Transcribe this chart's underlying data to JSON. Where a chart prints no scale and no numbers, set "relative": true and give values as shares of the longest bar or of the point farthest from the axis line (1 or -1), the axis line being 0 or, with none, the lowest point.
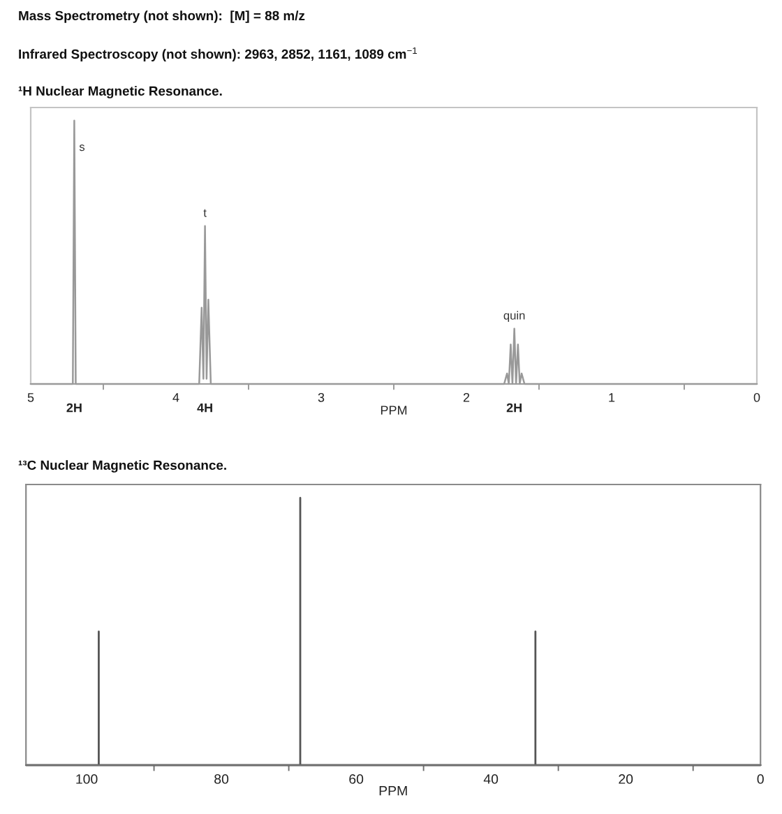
{
  "chart_data": [
    {
      "type": "other",
      "annotations": [
        "Mass Spectrometry (not shown):  [M] = 88 m/z",
        "Infrared Spectroscopy (not shown): 2963, 2852, 1161, 1089 cm$^{−1}$"
      ]
    },
    {
      "type": "line",
      "title": "¹H Nuclear Magnetic Resonance.",
      "xlabel": "PPM",
      "relative": true,
      "xlim": [
        5,
        0
      ],
      "xticks": [
        5,
        {
          "value": 4.5,
          "label": null
        },
        4,
        {
          "value": 3.5,
          "label": null
        },
        3,
        {
          "value": 2.5,
          "label": null
        },
        2,
        {
          "value": 1.5,
          "label": null
        },
        1,
        {
          "value": 0.5,
          "label": null
        },
        0
      ],
      "series": [
        {
          "color": "#999999",
          "x": [
            5,
            4.71,
            4.7,
            4.69,
            3.84,
            3.823,
            3.811,
            3.8,
            3.789,
            3.777,
            3.76,
            1.74,
            1.72,
            1.708,
            1.695,
            1.683,
            1.67,
            1.658,
            1.645,
            1.633,
            1.62,
            1.6,
            0
          ],
          "values": [
            0,
            0,
            1,
            0,
            0,
            0.29,
            0.02,
            0.6,
            0.02,
            0.32,
            0,
            0,
            0.04,
            0,
            0.15,
            0,
            0.21,
            0,
            0.15,
            0,
            0.04,
            0,
            0
          ]
        }
      ],
      "annotations": [
        {
          "text": "s",
          "x": 4.7,
          "y": 1
        },
        {
          "text": "t",
          "x": 3.8,
          "y": 0.6
        },
        {
          "text": "quin",
          "x": 1.67,
          "y": 0.21
        },
        "2H",
        "4H",
        "2H"
      ]
    },
    {
      "type": "line",
      "title": "¹³C Nuclear Magnetic Resonance.",
      "xlabel": "PPM",
      "relative": true,
      "xlim": [
        109,
        0
      ],
      "xticks": [
        100,
        {
          "value": 90,
          "label": null
        },
        80,
        {
          "value": 70,
          "label": null
        },
        60,
        {
          "value": 50,
          "label": null
        },
        40,
        {
          "value": 30,
          "label": null
        },
        20,
        {
          "value": 10,
          "label": null
        },
        0
      ],
      "series": [
        {
          "color": "#555555",
          "x": [
            109,
            98.2,
            98.2,
            98.2,
            68.3,
            68.3,
            68.3,
            33.4,
            33.4,
            33.4,
            0
          ],
          "values": [
            0,
            0,
            0.5,
            0,
            0,
            1,
            0,
            0,
            0.5,
            0,
            0
          ]
        }
      ]
    }
  ]
}
